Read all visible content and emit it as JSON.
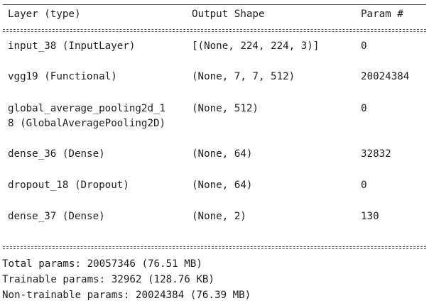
{
  "header": {
    "layer": "Layer (type)",
    "shape": "Output Shape",
    "param": "Param #"
  },
  "rows": [
    {
      "layer": "input_38 (InputLayer)",
      "shape": "[(None, 224, 224, 3)]",
      "param": "0"
    },
    {
      "layer": "vgg19 (Functional)",
      "shape": "(None, 7, 7, 512)",
      "param": "20024384"
    },
    {
      "layer": "global_average_pooling2d_1\n8 (GlobalAveragePooling2D)",
      "shape": "(None, 512)",
      "param": "0"
    },
    {
      "layer": "dense_36 (Dense)",
      "shape": "(None, 64)",
      "param": "32832"
    },
    {
      "layer": "dropout_18 (Dropout)",
      "shape": "(None, 64)",
      "param": "0"
    },
    {
      "layer": "dense_37 (Dense)",
      "shape": "(None, 2)",
      "param": "130"
    }
  ],
  "totals": {
    "total": "Total params: 20057346 (76.51 MB)",
    "trainable": "Trainable params: 32962 (128.76 KB)",
    "non_trainable": "Non-trainable params: 20024384 (76.39 MB)"
  }
}
